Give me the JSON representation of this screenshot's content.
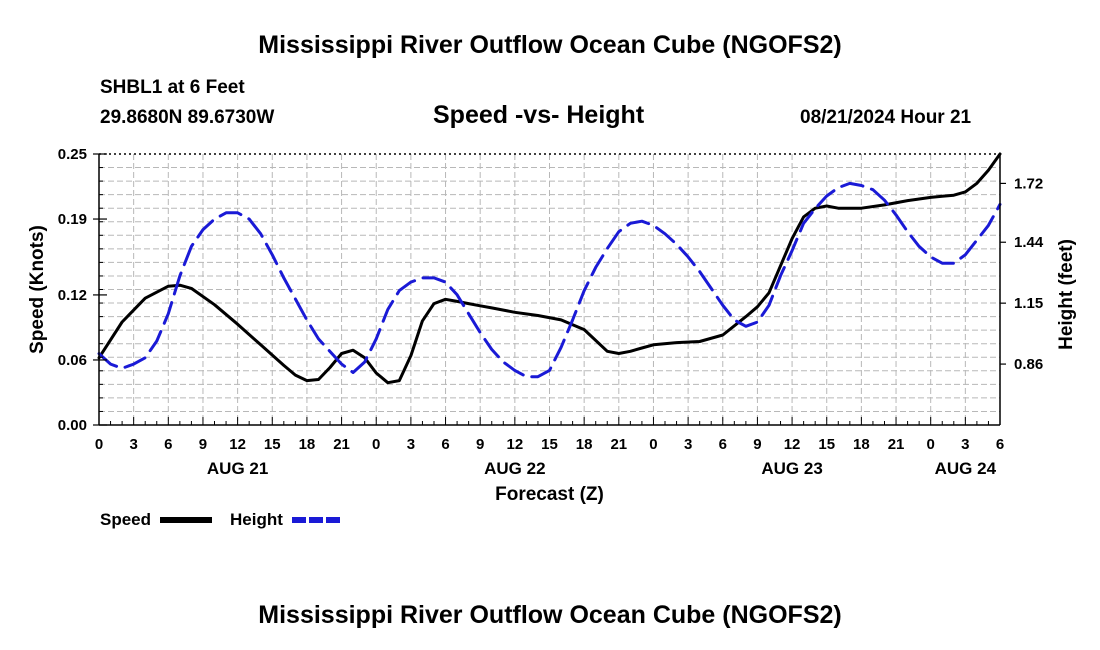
{
  "header": {
    "title": "Mississippi River Outflow Ocean Cube (NGOFS2)",
    "station": "SHBL1 at 6 Feet",
    "coords": "29.8680N  89.6730W",
    "subtitle": "Speed -vs- Height",
    "datetime": "08/21/2024 Hour 21"
  },
  "footer": {
    "title": "Mississippi River Outflow Ocean Cube (NGOFS2)"
  },
  "chart_data": {
    "type": "line",
    "title": "Speed -vs- Height",
    "xlabel": "Forecast (Z)",
    "ylabel": "Speed (Knots)",
    "y2label": "Height (feet)",
    "x_unit": "hours since 08/21 00Z",
    "xlim": [
      0,
      78
    ],
    "ylim": [
      0,
      0.25
    ],
    "y2lim": [
      0.57,
      1.86
    ],
    "grid": true,
    "x_ticks": [
      0,
      3,
      6,
      9,
      12,
      15,
      18,
      21,
      24,
      27,
      30,
      33,
      36,
      39,
      42,
      45,
      48,
      51,
      54,
      57,
      60,
      63,
      66,
      69,
      72,
      75,
      78
    ],
    "x_tick_labels": [
      "0",
      "3",
      "6",
      "9",
      "12",
      "15",
      "18",
      "21",
      "0",
      "3",
      "6",
      "9",
      "12",
      "15",
      "18",
      "21",
      "0",
      "3",
      "6",
      "9",
      "12",
      "15",
      "18",
      "21",
      "0",
      "3",
      "6"
    ],
    "date_labels": [
      {
        "label": "AUG 21",
        "x": 12
      },
      {
        "label": "AUG 22",
        "x": 36
      },
      {
        "label": "AUG 23",
        "x": 60
      },
      {
        "label": "AUG 24",
        "x": 75
      }
    ],
    "y_ticks": [
      0.0,
      0.06,
      0.12,
      0.19,
      0.25
    ],
    "y_tick_labels": [
      "0.00",
      "0.06",
      "0.12",
      "0.19",
      "0.25"
    ],
    "y2_ticks": [
      0.86,
      1.15,
      1.44,
      1.72
    ],
    "y2_tick_labels": [
      "0.86",
      "1.15",
      "1.44",
      "1.72"
    ],
    "legend": [
      {
        "name": "Speed",
        "color": "#000000",
        "dash": "solid"
      },
      {
        "name": "Height",
        "color": "#1a1ad6",
        "dash": "dashed"
      }
    ],
    "series": [
      {
        "name": "Speed",
        "axis": "left",
        "color": "#000000",
        "x": [
          0,
          2,
          4,
          6,
          7,
          8,
          10,
          12,
          14,
          16,
          17,
          18,
          19,
          20,
          21,
          22,
          23,
          24,
          25,
          26,
          27,
          28,
          29,
          30,
          31,
          32,
          33,
          34,
          36,
          38,
          40,
          42,
          44,
          45,
          46,
          47,
          48,
          50,
          52,
          54,
          56,
          57,
          58,
          60,
          61,
          62,
          63,
          64,
          66,
          68,
          70,
          72,
          73,
          74,
          75,
          76,
          77,
          78
        ],
        "y": [
          0.062,
          0.095,
          0.117,
          0.128,
          0.129,
          0.126,
          0.111,
          0.093,
          0.074,
          0.055,
          0.046,
          0.041,
          0.042,
          0.053,
          0.066,
          0.069,
          0.062,
          0.048,
          0.039,
          0.041,
          0.064,
          0.096,
          0.112,
          0.116,
          0.114,
          0.112,
          0.11,
          0.108,
          0.104,
          0.101,
          0.097,
          0.088,
          0.068,
          0.066,
          0.068,
          0.071,
          0.074,
          0.076,
          0.077,
          0.083,
          0.1,
          0.109,
          0.122,
          0.172,
          0.192,
          0.2,
          0.202,
          0.2,
          0.2,
          0.203,
          0.207,
          0.21,
          0.211,
          0.212,
          0.215,
          0.223,
          0.235,
          0.25
        ]
      },
      {
        "name": "Height",
        "axis": "right",
        "color": "#1a1ad6",
        "x": [
          0,
          1,
          2,
          3,
          4,
          5,
          6,
          7,
          8,
          9,
          10,
          11,
          12,
          13,
          14,
          15,
          16,
          17,
          18,
          19,
          20,
          21,
          22,
          23,
          24,
          25,
          26,
          27,
          28,
          29,
          30,
          31,
          32,
          33,
          34,
          35,
          36,
          37,
          38,
          39,
          40,
          41,
          42,
          43,
          44,
          45,
          46,
          47,
          48,
          49,
          50,
          51,
          52,
          53,
          54,
          55,
          56,
          57,
          58,
          59,
          60,
          61,
          62,
          63,
          64,
          65,
          66,
          67,
          68,
          69,
          70,
          71,
          72,
          73,
          74,
          75,
          76,
          77,
          78
        ],
        "y": [
          0.91,
          0.86,
          0.84,
          0.86,
          0.89,
          0.97,
          1.1,
          1.28,
          1.42,
          1.5,
          1.55,
          1.58,
          1.58,
          1.55,
          1.48,
          1.38,
          1.27,
          1.17,
          1.07,
          0.98,
          0.92,
          0.86,
          0.82,
          0.87,
          0.98,
          1.12,
          1.21,
          1.25,
          1.27,
          1.27,
          1.25,
          1.19,
          1.1,
          1.01,
          0.93,
          0.87,
          0.83,
          0.8,
          0.8,
          0.83,
          0.94,
          1.07,
          1.21,
          1.32,
          1.41,
          1.49,
          1.53,
          1.54,
          1.52,
          1.48,
          1.43,
          1.37,
          1.3,
          1.22,
          1.14,
          1.07,
          1.04,
          1.06,
          1.14,
          1.28,
          1.4,
          1.53,
          1.6,
          1.66,
          1.7,
          1.72,
          1.71,
          1.69,
          1.64,
          1.57,
          1.49,
          1.42,
          1.37,
          1.34,
          1.34,
          1.38,
          1.45,
          1.52,
          1.62
        ]
      }
    ]
  }
}
